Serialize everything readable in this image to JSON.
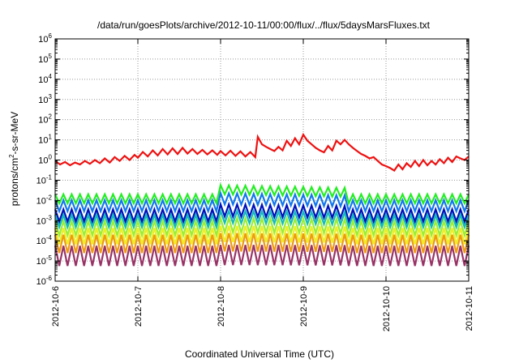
{
  "chart_data": {
    "type": "line",
    "title": "/data/run/goesPlots/archive/2012-10-11/00:00/flux/../flux/5daysMarsFluxes.txt",
    "xlabel": "Coordinated Universal Time (UTC)",
    "ylabel_base": "protons/cm",
    "ylabel_sup": "2",
    "ylabel_rest": "-s-sr-MeV",
    "y_scale": "log",
    "ylim": [
      1e-06,
      1000000.0
    ],
    "xlim": [
      0,
      5
    ],
    "grid": true,
    "legend": "none",
    "x_ticks": [
      {
        "x": 0,
        "label": "2012-10-6"
      },
      {
        "x": 1,
        "label": "2012-10-7"
      },
      {
        "x": 2,
        "label": "2012-10-8"
      },
      {
        "x": 3,
        "label": "2012-10-9"
      },
      {
        "x": 4,
        "label": "2012-10-10"
      },
      {
        "x": 5,
        "label": "2012-10-11"
      }
    ],
    "y_ticks": [
      {
        "exp": "6",
        "value": 1000000.0
      },
      {
        "exp": "5",
        "value": 100000.0
      },
      {
        "exp": "4",
        "value": 10000.0
      },
      {
        "exp": "3",
        "value": 1000.0
      },
      {
        "exp": "2",
        "value": 100.0
      },
      {
        "exp": "1",
        "value": 10.0
      },
      {
        "exp": "0",
        "value": 1
      },
      {
        "exp": "-1",
        "value": 0.1
      },
      {
        "exp": "-2",
        "value": 0.01
      },
      {
        "exp": "-3",
        "value": 0.001
      },
      {
        "exp": "-4",
        "value": 0.0001
      },
      {
        "exp": "-5",
        "value": 1e-05
      },
      {
        "exp": "-6",
        "value": 1e-06
      }
    ],
    "y_tick_base": "10",
    "series": [
      {
        "color": "#ee1111",
        "x": [
          0,
          0.06,
          0.12,
          0.18,
          0.24,
          0.3,
          0.36,
          0.42,
          0.48,
          0.54,
          0.6,
          0.66,
          0.72,
          0.78,
          0.84,
          0.9,
          0.96,
          1.0,
          1.06,
          1.12,
          1.18,
          1.24,
          1.3,
          1.36,
          1.42,
          1.48,
          1.54,
          1.6,
          1.66,
          1.72,
          1.78,
          1.84,
          1.9,
          1.96,
          2.0,
          2.06,
          2.12,
          2.18,
          2.24,
          2.3,
          2.36,
          2.42,
          2.45,
          2.5,
          2.55,
          2.6,
          2.65,
          2.7,
          2.75,
          2.8,
          2.85,
          2.9,
          2.95,
          3.0,
          3.05,
          3.1,
          3.15,
          3.2,
          3.25,
          3.3,
          3.35,
          3.4,
          3.45,
          3.5,
          3.55,
          3.6,
          3.65,
          3.7,
          3.75,
          3.8,
          3.85,
          3.9,
          3.95,
          4.0,
          4.05,
          4.1,
          4.15,
          4.2,
          4.25,
          4.3,
          4.35,
          4.4,
          4.45,
          4.5,
          4.55,
          4.6,
          4.65,
          4.7,
          4.75,
          4.8,
          4.85,
          4.9,
          4.95,
          5.0
        ],
        "y": [
          0.9,
          0.6,
          0.8,
          0.55,
          0.75,
          0.6,
          0.9,
          0.65,
          1.0,
          0.7,
          1.2,
          0.75,
          1.4,
          0.9,
          1.6,
          1.0,
          1.8,
          1.3,
          2.5,
          1.5,
          3.0,
          1.7,
          3.5,
          1.9,
          3.8,
          2.0,
          4.0,
          2.1,
          3.5,
          2.0,
          3.2,
          1.9,
          3.0,
          1.8,
          2.8,
          1.7,
          2.9,
          1.6,
          2.7,
          1.5,
          2.5,
          1.4,
          14,
          6,
          4.5,
          3.5,
          2.8,
          4.5,
          3.0,
          9.0,
          5.0,
          12,
          6.0,
          18,
          9.0,
          6.0,
          4.0,
          3.0,
          2.4,
          5.0,
          3.0,
          9.0,
          6.0,
          10,
          6.0,
          4.0,
          2.8,
          2.0,
          1.6,
          1.2,
          1.4,
          0.9,
          0.6,
          0.5,
          0.4,
          0.3,
          0.6,
          0.35,
          0.7,
          0.45,
          0.9,
          0.5,
          1.0,
          0.55,
          0.9,
          0.6,
          1.1,
          0.7,
          1.3,
          0.8,
          1.5,
          1.2,
          1.0,
          1.5
        ]
      },
      {
        "color": "#22ee22",
        "base": 0.012,
        "amp": 0.45,
        "bump": [
          [
            2.0,
            3.5,
            2.8
          ]
        ]
      },
      {
        "color": "#1177ee",
        "base": 0.0055,
        "amp": 0.55,
        "bump": [
          [
            2.0,
            3.5,
            2.2
          ]
        ]
      },
      {
        "color": "#0011bb",
        "base": 0.0018,
        "amp": 0.6,
        "bump": [
          [
            2.0,
            3.5,
            1.8
          ]
        ]
      },
      {
        "color": "#11bbbb",
        "base": 0.00095,
        "amp": 0.6,
        "bump": [
          [
            2.0,
            3.5,
            1.6
          ]
        ]
      },
      {
        "color": "#99ee33",
        "base": 0.00042,
        "amp": 0.7,
        "bump": [
          [
            2.0,
            3.5,
            1.4
          ]
        ]
      },
      {
        "color": "#eeee22",
        "base": 0.00017,
        "amp": 0.8,
        "bump": [
          [
            2.0,
            3.5,
            1.3
          ]
        ]
      },
      {
        "color": "#ee9911",
        "base": 7e-05,
        "amp": 0.9,
        "bump": [
          [
            2.0,
            3.5,
            1.2
          ]
        ]
      },
      {
        "color": "#993366",
        "base": 1.8e-05,
        "amp": 1.0,
        "bump": [
          [
            2.0,
            3.5,
            1.1
          ]
        ]
      }
    ],
    "sawtooth_period": 0.1
  }
}
